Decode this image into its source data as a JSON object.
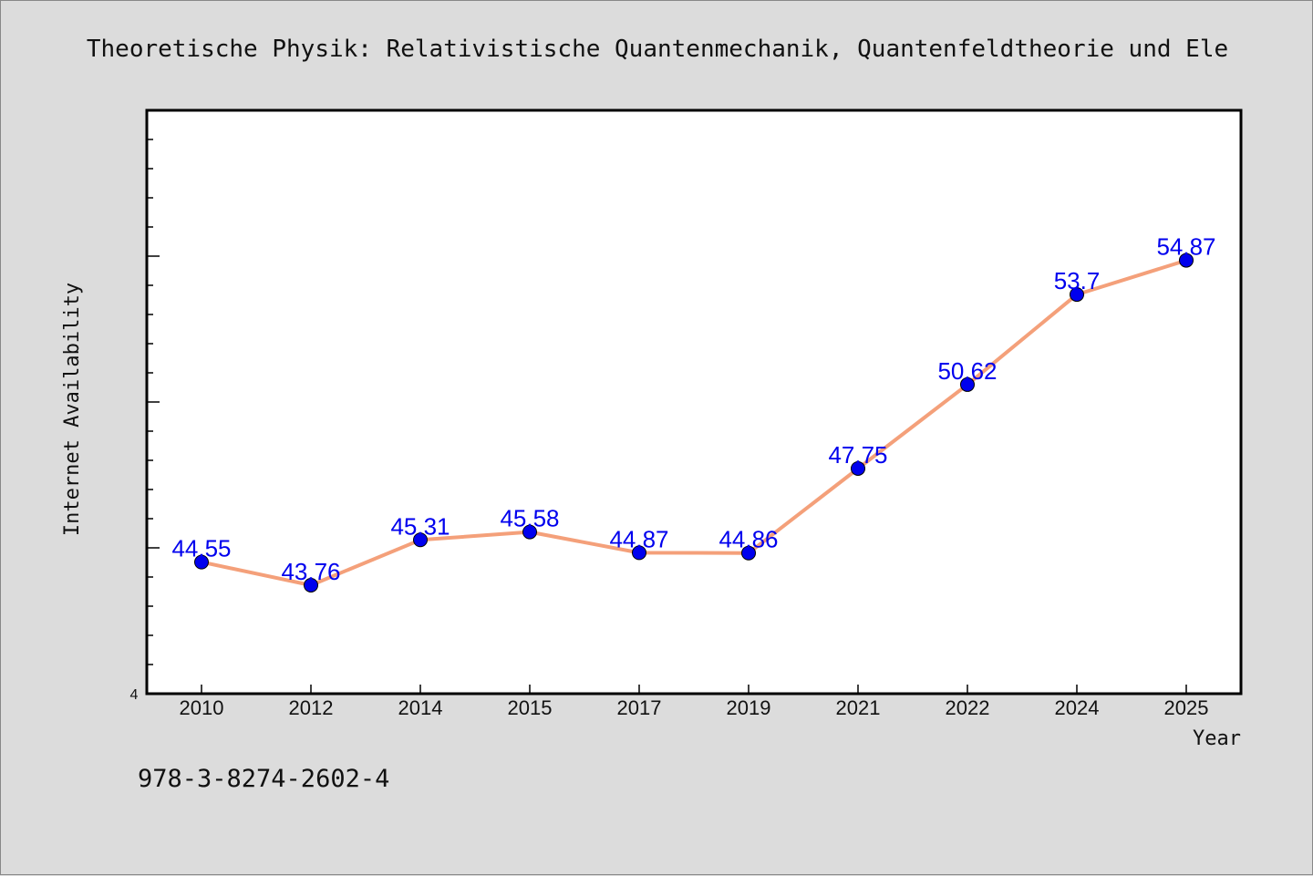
{
  "chart_data": {
    "type": "line",
    "title": "Theoretische Physik: Relativistische Quantenmechanik, Quantenfeldtheorie und Ele",
    "xlabel": "Year",
    "ylabel": "Internet Availability",
    "categories": [
      "2010",
      "2012",
      "2014",
      "2015",
      "2017",
      "2019",
      "2021",
      "2022",
      "2024",
      "2025"
    ],
    "series": [
      {
        "values": [
          44.55,
          43.76,
          45.31,
          45.58,
          44.87,
          44.86,
          47.75,
          50.62,
          53.7,
          54.87
        ],
        "labels": [
          "44.55",
          "43.76",
          "45.31",
          "45.58",
          "44.87",
          "44.86",
          "47.75",
          "50.62",
          "53.7",
          "54.87"
        ]
      }
    ],
    "y_tick_labels": [
      "4"
    ],
    "ylim": [
      40.05,
      60
    ],
    "grid": false,
    "line_color": "#f4a07a",
    "marker_color": "#0000ee",
    "label_color": "#0000ee"
  },
  "footer": {
    "isbn": "978-3-8274-2602-4"
  }
}
